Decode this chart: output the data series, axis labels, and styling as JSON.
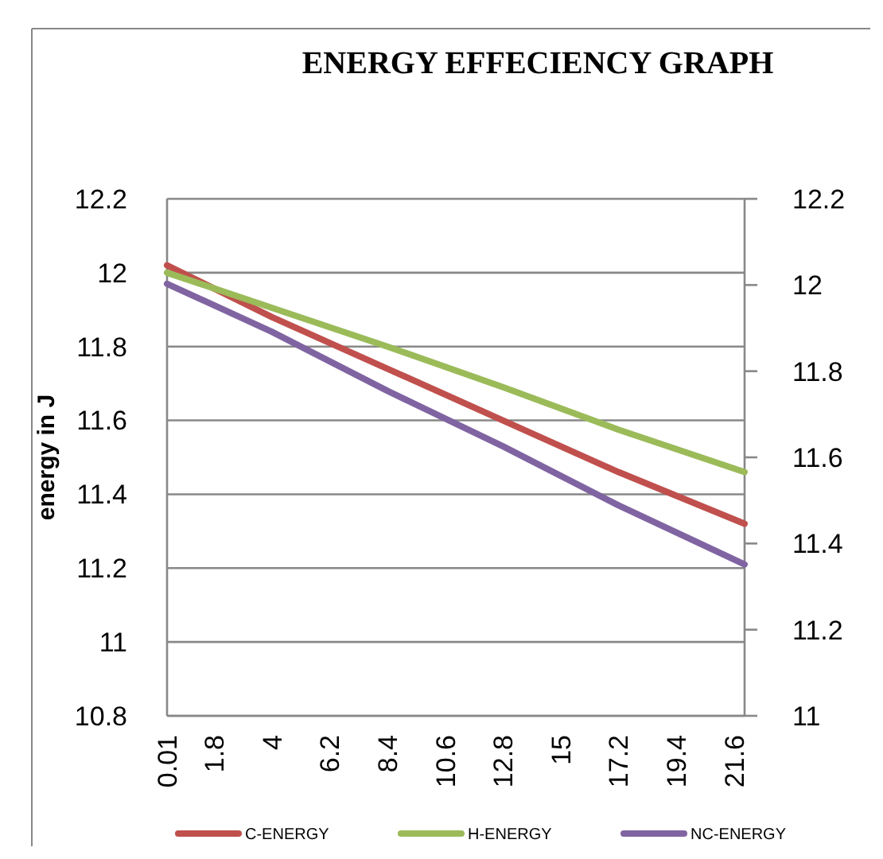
{
  "chart_data": {
    "type": "line",
    "title": "ENERGY EFFECIENCY GRAPH",
    "ylabel": "energy in J",
    "x": [
      0.01,
      4,
      8.4,
      12.8,
      17.2,
      22
    ],
    "xlim": [
      0.01,
      22
    ],
    "xticks": [
      0.01,
      1.8,
      4,
      6.2,
      8.4,
      10.6,
      12.8,
      15,
      17.2,
      19.4,
      21.6
    ],
    "ylim": [
      10.8,
      12.2
    ],
    "yticks": [
      10.8,
      11,
      11.2,
      11.4,
      11.6,
      11.8,
      12,
      12.2
    ],
    "y2lim": [
      11,
      12.2
    ],
    "y2ticks": [
      11,
      11.2,
      11.4,
      11.6,
      11.8,
      12,
      12.2
    ],
    "grid": "y",
    "legend": "bottom",
    "marker": "none",
    "line_style": "solid",
    "series": [
      {
        "name": "C-ENERGY",
        "color": "#c0504d",
        "values": [
          12.02,
          11.88,
          11.74,
          11.6,
          11.46,
          11.32
        ]
      },
      {
        "name": "H-ENERGY",
        "color": "#9bbb59",
        "values": [
          12.0,
          11.905,
          11.8,
          11.69,
          11.575,
          11.46
        ]
      },
      {
        "name": "NC-ENERGY",
        "color": "#8064a2",
        "values": [
          11.97,
          11.84,
          11.68,
          11.53,
          11.37,
          11.21
        ]
      }
    ]
  }
}
